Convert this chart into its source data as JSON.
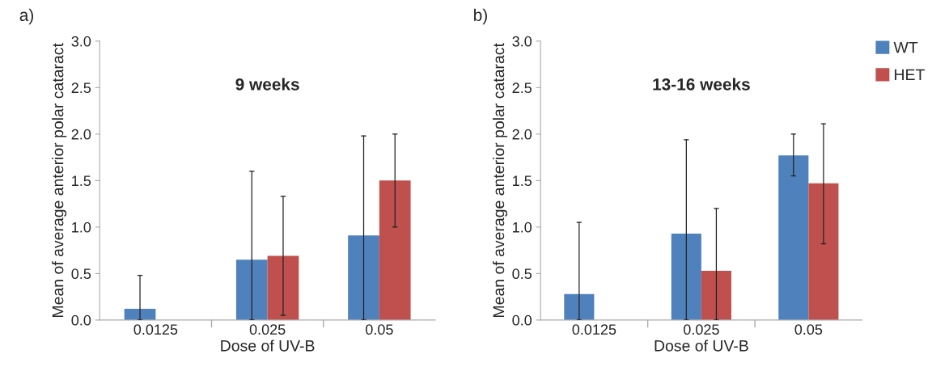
{
  "chart_data": [
    {
      "type": "bar",
      "title": "9 weeks",
      "xlabel": "Dose of UV-B",
      "ylabel": "Mean of average anterior polar cataract",
      "categories": [
        "0.0125",
        "0.025",
        "0.05"
      ],
      "series": [
        {
          "color": "#4f81bd",
          "values": [
            0.12,
            0.65,
            0.91
          ],
          "errors": [
            [
              0,
              0.48
            ],
            [
              0,
              1.6
            ],
            [
              0,
              1.98
            ]
          ]
        },
        {
          "color": "#c0504d",
          "values": [
            null,
            0.69,
            1.5
          ],
          "errors": [
            null,
            [
              0.05,
              1.33
            ],
            [
              1.0,
              2.0
            ]
          ]
        }
      ],
      "ylim": [
        0,
        3
      ],
      "yticks": [
        {
          "value": 0,
          "label": "0.0"
        },
        {
          "value": 0.5,
          "label": "0.5"
        },
        {
          "value": 1,
          "label": "1.0"
        },
        {
          "value": 1.5,
          "label": "1.5"
        },
        {
          "value": 2,
          "label": "2.0"
        },
        {
          "value": 2.5,
          "label": "2.5"
        },
        {
          "value": 3,
          "label": "3.0"
        }
      ],
      "annotations": [
        "a)"
      ],
      "grid": false,
      "legend": false
    },
    {
      "type": "bar",
      "title": "13-16 weeks",
      "xlabel": "Dose of UV-B",
      "ylabel": "Mean of average anterior polar cataract",
      "categories": [
        "0.0125",
        "0.025",
        "0.05"
      ],
      "series": [
        {
          "name": "WT",
          "color": "#4f81bd",
          "values": [
            0.28,
            0.93,
            1.77
          ],
          "errors": [
            [
              0,
              1.05
            ],
            [
              0,
              1.94
            ],
            [
              1.55,
              2.0
            ]
          ]
        },
        {
          "name": "HET",
          "color": "#c0504d",
          "values": [
            null,
            0.53,
            1.47
          ],
          "errors": [
            null,
            [
              0,
              1.2
            ],
            [
              0.82,
              2.11
            ]
          ]
        }
      ],
      "ylim": [
        0,
        3
      ],
      "yticks": [
        {
          "value": 0,
          "label": "0.0"
        },
        {
          "value": 0.5,
          "label": "0.5"
        },
        {
          "value": 1,
          "label": "1.0"
        },
        {
          "value": 1.5,
          "label": "1.5"
        },
        {
          "value": 2,
          "label": "2.0"
        },
        {
          "value": 2.5,
          "label": "2.5"
        },
        {
          "value": 3,
          "label": "3.0"
        }
      ],
      "annotations": [
        "b)"
      ],
      "grid": false,
      "legend": "top right"
    }
  ]
}
